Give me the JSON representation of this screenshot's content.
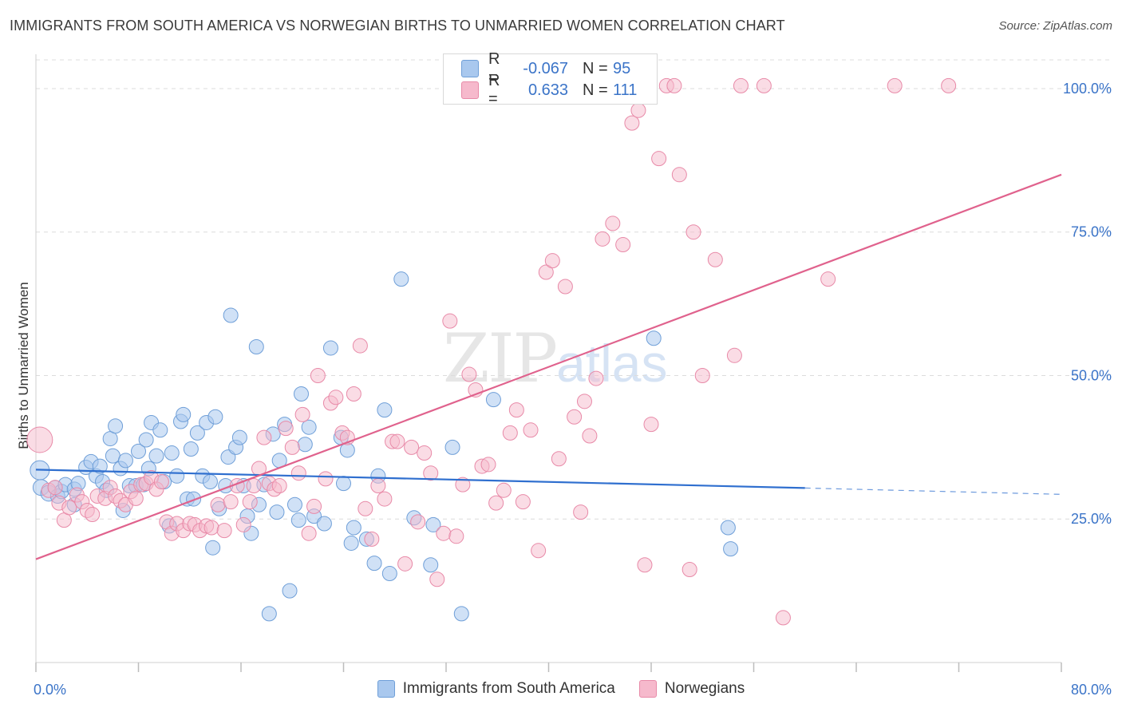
{
  "header": {
    "title": "IMMIGRANTS FROM SOUTH AMERICA VS NORWEGIAN BIRTHS TO UNMARRIED WOMEN CORRELATION CHART",
    "source": "Source: ZipAtlas.com"
  },
  "watermark": {
    "zip": "ZIP",
    "atlas": "atlas"
  },
  "legend_top": {
    "rows": [
      {
        "r_label": "R =",
        "r_value": "-0.067",
        "n_label": "N =",
        "n_value": "95"
      },
      {
        "r_label": "R =",
        "r_value": "0.633",
        "n_label": "N =",
        "n_value": "111"
      }
    ]
  },
  "legend_bottom": {
    "items": [
      {
        "label": "Immigrants from South America"
      },
      {
        "label": "Norwegians"
      }
    ]
  },
  "colors": {
    "blue_fill": "#a9c8ee",
    "blue_stroke": "#6f9fd8",
    "blue_line": "#2f6fcf",
    "pink_fill": "#f6b9cc",
    "pink_stroke": "#e88aa8",
    "pink_line": "#e0628d",
    "grid": "#dcdcdc",
    "axis_text": "#3b74c8"
  },
  "chart_data": {
    "type": "scatter",
    "title": "IMMIGRANTS FROM SOUTH AMERICA VS NORWEGIAN BIRTHS TO UNMARRIED WOMEN CORRELATION CHART",
    "xlabel": "",
    "ylabel": "Births to Unmarried Women",
    "xlim": [
      0,
      80
    ],
    "ylim": [
      0,
      105
    ],
    "x_tick_labels": [
      "0.0%",
      "80.0%"
    ],
    "y_ticks": [
      25,
      50,
      75,
      100
    ],
    "y_tick_labels": [
      "25.0%",
      "50.0%",
      "75.0%",
      "100.0%"
    ],
    "grid": true,
    "legend_position": "top-center",
    "series": [
      {
        "name": "Immigrants from South America",
        "color": "#a9c8ee",
        "trend": {
          "x": [
            0,
            60
          ],
          "y": [
            33.6,
            30.4
          ],
          "dashed_to": [
            80,
            29.3
          ]
        },
        "points": [
          [
            0.3,
            33.5
          ],
          [
            0.4,
            30.5
          ],
          [
            1.0,
            29.5
          ],
          [
            1.5,
            30.5
          ],
          [
            1.7,
            29.0
          ],
          [
            2.0,
            29.8
          ],
          [
            2.3,
            31.0
          ],
          [
            3.0,
            30.2
          ],
          [
            3.0,
            27.5
          ],
          [
            3.3,
            31.2
          ],
          [
            3.9,
            34.0
          ],
          [
            4.3,
            35.0
          ],
          [
            4.7,
            32.5
          ],
          [
            5.0,
            34.2
          ],
          [
            5.2,
            31.5
          ],
          [
            5.5,
            30.0
          ],
          [
            5.8,
            39.0
          ],
          [
            6.0,
            36.0
          ],
          [
            6.2,
            41.2
          ],
          [
            6.6,
            33.8
          ],
          [
            6.8,
            26.5
          ],
          [
            7.0,
            35.2
          ],
          [
            7.3,
            30.8
          ],
          [
            7.8,
            30.8
          ],
          [
            8.0,
            36.8
          ],
          [
            8.4,
            31.0
          ],
          [
            8.6,
            38.8
          ],
          [
            8.8,
            33.8
          ],
          [
            9.0,
            41.8
          ],
          [
            9.4,
            36.0
          ],
          [
            9.7,
            40.5
          ],
          [
            10.0,
            31.5
          ],
          [
            10.4,
            23.8
          ],
          [
            10.6,
            36.5
          ],
          [
            11.0,
            32.5
          ],
          [
            11.3,
            42.0
          ],
          [
            11.5,
            43.2
          ],
          [
            11.8,
            28.5
          ],
          [
            12.1,
            37.2
          ],
          [
            12.3,
            28.5
          ],
          [
            12.6,
            40.0
          ],
          [
            13.0,
            32.5
          ],
          [
            13.3,
            41.8
          ],
          [
            13.6,
            31.5
          ],
          [
            13.8,
            20.0
          ],
          [
            14.0,
            42.8
          ],
          [
            14.3,
            26.8
          ],
          [
            14.8,
            30.8
          ],
          [
            15.0,
            35.8
          ],
          [
            15.2,
            60.5
          ],
          [
            15.6,
            37.5
          ],
          [
            15.9,
            39.2
          ],
          [
            16.2,
            30.8
          ],
          [
            16.5,
            25.5
          ],
          [
            16.8,
            22.5
          ],
          [
            17.2,
            55.0
          ],
          [
            17.4,
            27.5
          ],
          [
            17.8,
            31.0
          ],
          [
            18.2,
            8.5
          ],
          [
            18.5,
            39.8
          ],
          [
            18.8,
            26.2
          ],
          [
            19.0,
            35.2
          ],
          [
            19.4,
            41.5
          ],
          [
            19.8,
            12.5
          ],
          [
            20.2,
            27.5
          ],
          [
            20.5,
            24.8
          ],
          [
            20.7,
            46.8
          ],
          [
            21.0,
            38.0
          ],
          [
            21.3,
            41.0
          ],
          [
            21.7,
            25.5
          ],
          [
            22.5,
            24.2
          ],
          [
            23.0,
            54.8
          ],
          [
            23.8,
            39.2
          ],
          [
            24.0,
            31.2
          ],
          [
            24.3,
            37.0
          ],
          [
            24.6,
            20.8
          ],
          [
            24.8,
            23.5
          ],
          [
            25.8,
            21.5
          ],
          [
            26.4,
            17.3
          ],
          [
            26.7,
            32.5
          ],
          [
            27.2,
            44.0
          ],
          [
            27.6,
            15.5
          ],
          [
            28.5,
            66.8
          ],
          [
            29.5,
            25.2
          ],
          [
            30.8,
            17.0
          ],
          [
            31.0,
            24.0
          ],
          [
            32.5,
            37.5
          ],
          [
            33.2,
            8.5
          ],
          [
            35.7,
            45.8
          ],
          [
            48.2,
            56.5
          ],
          [
            54.0,
            23.5
          ],
          [
            54.2,
            19.8
          ]
        ]
      },
      {
        "name": "Norwegians",
        "color": "#f6b9cc",
        "trend": {
          "x": [
            0,
            80
          ],
          "y": [
            18.0,
            85.0
          ]
        },
        "points": [
          [
            0.3,
            38.8
          ],
          [
            1.0,
            30.0
          ],
          [
            1.5,
            30.5
          ],
          [
            1.8,
            27.8
          ],
          [
            2.2,
            24.8
          ],
          [
            2.6,
            27.0
          ],
          [
            3.2,
            29.2
          ],
          [
            3.6,
            28.0
          ],
          [
            4.0,
            26.5
          ],
          [
            4.4,
            25.8
          ],
          [
            4.8,
            29.0
          ],
          [
            5.4,
            28.6
          ],
          [
            5.8,
            30.5
          ],
          [
            6.2,
            29.0
          ],
          [
            6.6,
            28.2
          ],
          [
            7.0,
            27.5
          ],
          [
            7.4,
            29.8
          ],
          [
            7.8,
            28.6
          ],
          [
            8.2,
            31.0
          ],
          [
            8.6,
            31.2
          ],
          [
            9.0,
            32.2
          ],
          [
            9.4,
            30.2
          ],
          [
            9.8,
            31.5
          ],
          [
            10.2,
            24.5
          ],
          [
            10.6,
            22.5
          ],
          [
            11.0,
            24.2
          ],
          [
            11.5,
            23.0
          ],
          [
            12.0,
            24.2
          ],
          [
            12.4,
            24.0
          ],
          [
            12.8,
            23.0
          ],
          [
            13.3,
            23.8
          ],
          [
            13.7,
            23.5
          ],
          [
            14.2,
            27.5
          ],
          [
            14.7,
            23.0
          ],
          [
            15.2,
            28.0
          ],
          [
            15.7,
            30.8
          ],
          [
            16.2,
            24.0
          ],
          [
            16.7,
            28.0
          ],
          [
            17.0,
            30.8
          ],
          [
            17.4,
            33.8
          ],
          [
            17.8,
            39.2
          ],
          [
            18.2,
            31.2
          ],
          [
            18.6,
            30.2
          ],
          [
            19.0,
            30.8
          ],
          [
            19.5,
            40.8
          ],
          [
            20.0,
            37.5
          ],
          [
            20.5,
            33.0
          ],
          [
            20.8,
            43.2
          ],
          [
            21.3,
            22.5
          ],
          [
            21.7,
            27.2
          ],
          [
            22.0,
            50.0
          ],
          [
            22.6,
            32.0
          ],
          [
            23.0,
            45.2
          ],
          [
            23.4,
            46.2
          ],
          [
            23.9,
            40.0
          ],
          [
            24.3,
            39.2
          ],
          [
            24.8,
            46.8
          ],
          [
            25.3,
            55.2
          ],
          [
            25.7,
            26.8
          ],
          [
            26.2,
            21.5
          ],
          [
            26.7,
            30.8
          ],
          [
            27.2,
            28.5
          ],
          [
            27.8,
            38.5
          ],
          [
            28.2,
            38.5
          ],
          [
            28.8,
            17.2
          ],
          [
            29.3,
            37.5
          ],
          [
            29.8,
            24.5
          ],
          [
            30.3,
            36.5
          ],
          [
            30.8,
            33.0
          ],
          [
            31.3,
            14.5
          ],
          [
            31.8,
            22.5
          ],
          [
            32.3,
            59.5
          ],
          [
            32.8,
            22.0
          ],
          [
            33.3,
            31.0
          ],
          [
            33.8,
            50.2
          ],
          [
            34.3,
            47.5
          ],
          [
            34.8,
            34.2
          ],
          [
            35.3,
            34.5
          ],
          [
            35.9,
            27.8
          ],
          [
            36.5,
            30.0
          ],
          [
            37.0,
            40.0
          ],
          [
            37.5,
            44.0
          ],
          [
            38.0,
            28.0
          ],
          [
            38.6,
            40.5
          ],
          [
            39.2,
            19.5
          ],
          [
            39.8,
            68.0
          ],
          [
            40.3,
            70.0
          ],
          [
            40.8,
            35.5
          ],
          [
            41.3,
            65.5
          ],
          [
            42.0,
            42.8
          ],
          [
            42.5,
            26.2
          ],
          [
            42.8,
            45.5
          ],
          [
            43.2,
            39.5
          ],
          [
            43.7,
            49.5
          ],
          [
            44.2,
            73.8
          ],
          [
            45.0,
            76.5
          ],
          [
            45.8,
            72.8
          ],
          [
            46.5,
            94.0
          ],
          [
            47.0,
            96.2
          ],
          [
            47.5,
            17.0
          ],
          [
            48.0,
            41.5
          ],
          [
            48.6,
            87.8
          ],
          [
            49.2,
            100.5
          ],
          [
            49.8,
            100.5
          ],
          [
            50.2,
            85.0
          ],
          [
            51.0,
            16.2
          ],
          [
            51.3,
            75.0
          ],
          [
            52.0,
            50.0
          ],
          [
            53.0,
            70.2
          ],
          [
            54.5,
            53.5
          ],
          [
            55.0,
            100.5
          ],
          [
            56.8,
            100.5
          ],
          [
            58.3,
            7.8
          ],
          [
            61.8,
            66.8
          ],
          [
            67.0,
            100.5
          ],
          [
            71.2,
            100.5
          ]
        ]
      }
    ]
  }
}
